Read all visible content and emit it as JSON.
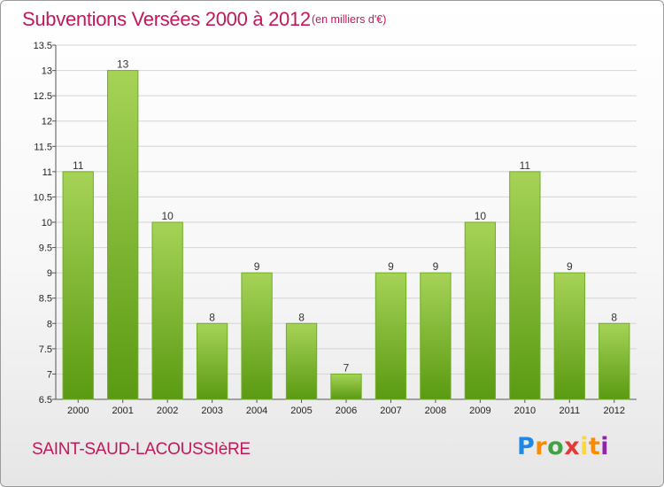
{
  "title": "Subventions Versées 2000 à 2012",
  "subtitle": "(en milliers d'€)",
  "commune": "SAINT-SAUD-LACOUSSIèRE",
  "logo": {
    "text": "Proxiti",
    "colors": [
      "#1e88e5",
      "#fb8c00",
      "#43a047",
      "#e53935",
      "#fdd835",
      "#8e24aa"
    ]
  },
  "chart_data": {
    "type": "bar",
    "title": "Subventions Versées 2000 à 2012",
    "subtitle": "(en milliers d'€)",
    "xlabel": "",
    "ylabel": "",
    "categories": [
      "2000",
      "2001",
      "2002",
      "2003",
      "2004",
      "2005",
      "2006",
      "2007",
      "2008",
      "2009",
      "2010",
      "2011",
      "2012"
    ],
    "values": [
      11,
      13,
      10,
      8,
      9,
      8,
      7,
      9,
      9,
      10,
      11,
      9,
      8
    ],
    "ylim": [
      6.5,
      13.5
    ],
    "yticks": [
      6.5,
      7,
      7.5,
      8,
      8.5,
      9,
      9.5,
      10,
      10.5,
      11,
      11.5,
      12,
      12.5,
      13,
      13.5
    ],
    "ytick_labels": [
      "6.5",
      "7",
      "7.5",
      "8",
      "8.5",
      "9",
      "9.5",
      "10",
      "10.5",
      "11",
      "11.5",
      "12",
      "12.5",
      "13",
      "13.5"
    ],
    "grid": true,
    "bar_color_top": "#a6d357",
    "bar_color_bottom": "#5a9a12",
    "grid_color": "#d4d4d4"
  }
}
